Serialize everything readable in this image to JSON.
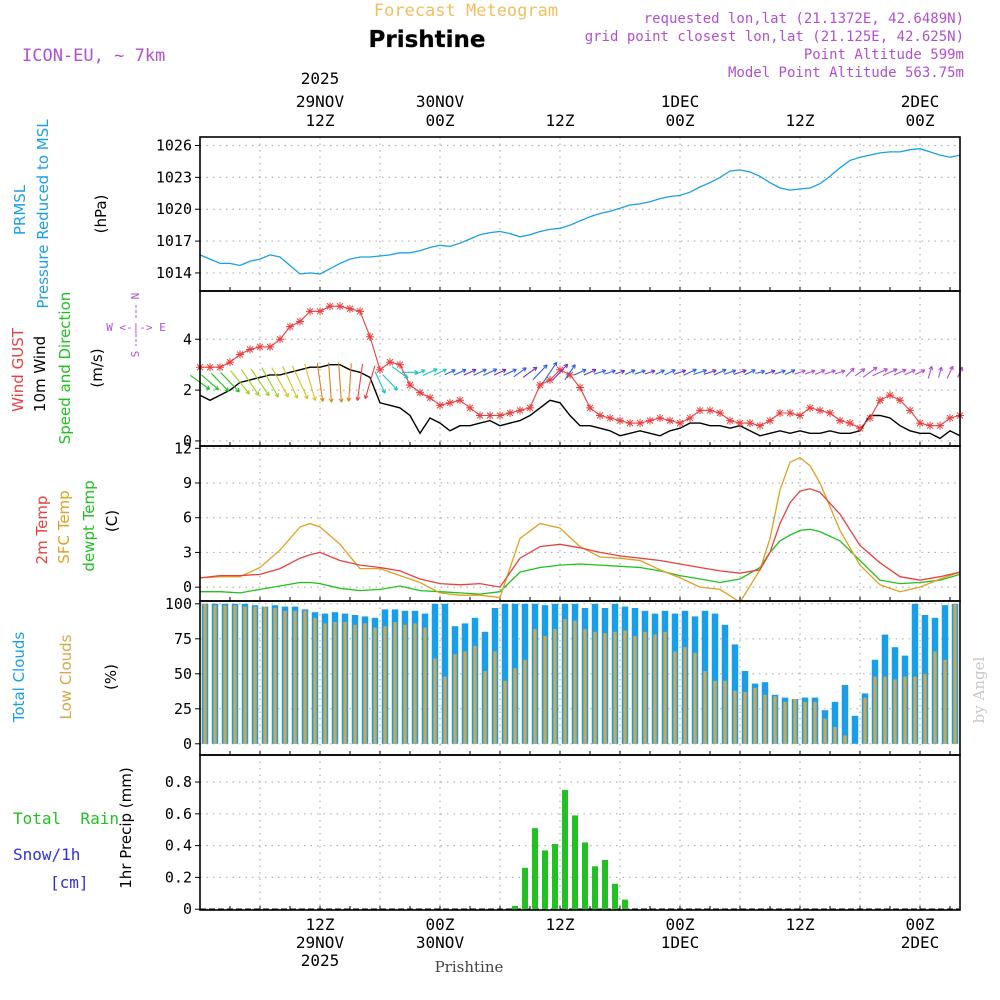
{
  "header": {
    "super_title": "Forecast Meteogram",
    "station": "Prishtine",
    "model": "ICON-EU, ~ 7km",
    "requested": "requested lon,lat (21.1372E, 42.6489N)",
    "grid_point": "grid point closest lon,lat (21.125E, 42.625N)",
    "point_altitude": "Point Altitude 599m",
    "model_altitude": "Model Point Altitude 563.75m",
    "credit": "by Angel",
    "footer_station": "Prishtine"
  },
  "colors": {
    "pressure": "#1a9ee8",
    "gust": "#e84040",
    "wind": "#000000",
    "temp2m": "#e84040",
    "sfc": "#e0a020",
    "dewpt": "#20c020",
    "total_clouds": "#1a9ee8",
    "low_clouds": "#d4a84a",
    "rain": "#22c022",
    "snow": "#3030e0",
    "header_purple": "#b050d0",
    "title_orange": "#f0c060",
    "wind_dir_purple": "#b050d0"
  },
  "time_axis": {
    "start_hour": 0,
    "end_hour": 76,
    "top_labels": [
      {
        "hour": 12,
        "line1": "2025",
        "line2": "29NOV",
        "line3": "12Z"
      },
      {
        "hour": 24,
        "line1": "",
        "line2": "30NOV",
        "line3": "00Z"
      },
      {
        "hour": 36,
        "line1": "",
        "line2": "",
        "line3": "12Z"
      },
      {
        "hour": 48,
        "line1": "",
        "line2": "1DEC",
        "line3": "00Z"
      },
      {
        "hour": 60,
        "line1": "",
        "line2": "",
        "line3": "12Z"
      },
      {
        "hour": 72,
        "line1": "",
        "line2": "2DEC",
        "line3": "00Z"
      }
    ],
    "bottom_labels": [
      {
        "hour": 12,
        "line1": "12Z",
        "line2": "29NOV",
        "line3": "2025"
      },
      {
        "hour": 24,
        "line1": "00Z",
        "line2": "30NOV",
        "line3": ""
      },
      {
        "hour": 36,
        "line1": "12Z",
        "line2": "",
        "line3": ""
      },
      {
        "hour": 48,
        "line1": "00Z",
        "line2": "1DEC",
        "line3": ""
      },
      {
        "hour": 60,
        "line1": "12Z",
        "line2": "",
        "line3": ""
      },
      {
        "hour": 72,
        "line1": "00Z",
        "line2": "2DEC",
        "line3": ""
      }
    ]
  },
  "chart_data": [
    {
      "id": "pressure",
      "type": "line",
      "title": "PRMSL Pressure Reduced to MSL",
      "label_line1": "PRMSL",
      "label_line2": "Pressure Reduced to MSL",
      "ylabel": "(hPa)",
      "ylim": [
        1012.3,
        1026.8
      ],
      "yticks": [
        1014,
        1017,
        1020,
        1023,
        1026
      ],
      "x": [
        0,
        2,
        3,
        4,
        5,
        6,
        7,
        8,
        9,
        10,
        11,
        12,
        13,
        14,
        15,
        16,
        17,
        18,
        19,
        20,
        21,
        22,
        23,
        24,
        25,
        26,
        27,
        28,
        29,
        30,
        31,
        32,
        33,
        34,
        35,
        36,
        37,
        38,
        39,
        40,
        41,
        42,
        43,
        44,
        45,
        46,
        47,
        48,
        49,
        50,
        51,
        52,
        53,
        54,
        55,
        56,
        57,
        58,
        59,
        60,
        61,
        62,
        63,
        64,
        65,
        66,
        67,
        68,
        69,
        70,
        71,
        72,
        73,
        74,
        75,
        76
      ],
      "y": [
        1015.7,
        1014.9,
        1014.9,
        1014.7,
        1015.1,
        1015.3,
        1015.7,
        1015.5,
        1014.7,
        1013.9,
        1014.0,
        1013.9,
        1014.4,
        1014.9,
        1015.3,
        1015.5,
        1015.5,
        1015.6,
        1015.7,
        1015.9,
        1015.9,
        1016.1,
        1016.4,
        1016.6,
        1016.5,
        1016.8,
        1017.2,
        1017.6,
        1017.8,
        1017.9,
        1017.7,
        1017.4,
        1017.6,
        1017.9,
        1018.1,
        1018.2,
        1018.5,
        1018.9,
        1019.3,
        1019.6,
        1019.8,
        1020.1,
        1020.4,
        1020.5,
        1020.7,
        1021.0,
        1021.2,
        1021.3,
        1021.6,
        1022.1,
        1022.5,
        1023.0,
        1023.6,
        1023.7,
        1023.5,
        1023.1,
        1022.5,
        1022.0,
        1021.8,
        1021.9,
        1022.0,
        1022.4,
        1023.1,
        1023.9,
        1024.6,
        1024.9,
        1025.1,
        1025.3,
        1025.4,
        1025.4,
        1025.6,
        1025.7,
        1025.4,
        1025.1,
        1024.9,
        1025.1
      ],
      "series_name": "PRMSL"
    },
    {
      "id": "wind",
      "type": "line",
      "title": "Wind GUST / 10m Wind Speed and Direction",
      "label_gust": "Wind GUST",
      "label_wind": "10m Wind",
      "label_dir": "Speed and Direction",
      "ylabel": "(m/s)",
      "compass_n": "N",
      "compass_s": "S",
      "compass_we": "W <-|-> E",
      "ylim": [
        -0.2,
        5.9
      ],
      "yticks": [
        0,
        2,
        4
      ],
      "x": [
        0,
        1,
        2,
        3,
        4,
        5,
        6,
        7,
        8,
        9,
        10,
        11,
        12,
        13,
        14,
        15,
        16,
        17,
        18,
        19,
        20,
        21,
        22,
        23,
        24,
        25,
        26,
        27,
        28,
        29,
        30,
        31,
        32,
        33,
        34,
        35,
        36,
        37,
        38,
        39,
        40,
        41,
        42,
        43,
        44,
        45,
        46,
        47,
        48,
        49,
        50,
        51,
        52,
        53,
        54,
        55,
        56,
        57,
        58,
        59,
        60,
        61,
        62,
        63,
        64,
        65,
        66,
        67,
        68,
        69,
        70,
        71,
        72,
        73,
        74,
        75,
        76
      ],
      "gust": [
        2.9,
        2.9,
        2.9,
        3.1,
        3.4,
        3.6,
        3.7,
        3.7,
        4.0,
        4.5,
        4.7,
        5.1,
        5.1,
        5.3,
        5.3,
        5.2,
        5.1,
        4.1,
        2.8,
        3.1,
        3.0,
        2.2,
        1.9,
        1.7,
        1.4,
        1.5,
        1.6,
        1.3,
        1.0,
        1.0,
        1.0,
        1.1,
        1.2,
        1.3,
        2.2,
        2.4,
        2.8,
        2.6,
        2.1,
        1.3,
        1.0,
        0.9,
        0.8,
        0.7,
        0.7,
        0.8,
        0.9,
        0.8,
        0.7,
        0.9,
        1.2,
        1.2,
        1.1,
        0.8,
        0.7,
        0.7,
        0.6,
        0.8,
        1.1,
        1.1,
        1.0,
        1.3,
        1.2,
        1.1,
        0.8,
        0.7,
        0.5,
        0.9,
        1.6,
        1.8,
        1.6,
        1.2,
        0.7,
        0.6,
        0.6,
        0.9,
        1.0
      ],
      "wind": [
        1.8,
        1.6,
        1.8,
        2.0,
        2.3,
        2.4,
        2.5,
        2.6,
        2.6,
        2.7,
        2.8,
        2.9,
        2.9,
        3.0,
        3.0,
        2.8,
        2.7,
        2.5,
        1.5,
        1.4,
        1.3,
        1.0,
        0.3,
        0.9,
        0.7,
        0.4,
        0.6,
        0.6,
        0.7,
        0.8,
        0.6,
        0.7,
        0.8,
        1.0,
        1.3,
        1.6,
        1.5,
        1.0,
        0.6,
        0.6,
        0.5,
        0.4,
        0.2,
        0.3,
        0.4,
        0.3,
        0.2,
        0.4,
        0.5,
        0.7,
        0.7,
        0.6,
        0.6,
        0.5,
        0.6,
        0.4,
        0.2,
        0.3,
        0.4,
        0.3,
        0.4,
        0.3,
        0.3,
        0.4,
        0.3,
        0.3,
        0.4,
        1.0,
        1.0,
        0.9,
        0.6,
        0.4,
        0.3,
        0.3,
        0.1,
        0.4,
        0.2
      ],
      "wind_dir_deg": [
        300,
        305,
        310,
        310,
        315,
        320,
        320,
        325,
        325,
        330,
        330,
        340,
        350,
        355,
        355,
        5,
        10,
        20,
        330,
        310,
        300,
        270,
        250,
        250,
        250,
        250,
        250,
        250,
        250,
        250,
        250,
        250,
        240,
        240,
        230,
        220,
        230,
        220,
        250,
        250,
        255,
        255,
        255,
        250,
        255,
        255,
        250,
        250,
        255,
        250,
        255,
        255,
        250,
        255,
        255,
        250,
        260,
        255,
        255,
        250,
        255,
        255,
        250,
        255,
        255,
        230,
        240,
        240,
        250,
        250,
        250,
        250,
        250,
        200,
        200,
        210,
        210
      ]
    },
    {
      "id": "temperature",
      "type": "line",
      "title": "2m Temp / SFC Temp / dewpt Temp",
      "label_2m": "2m Temp",
      "label_sfc": "SFC Temp",
      "label_dew": "dewpt Temp",
      "ylabel": "(C)",
      "ylim": [
        -1.2,
        12.2
      ],
      "yticks": [
        0,
        3,
        6,
        9,
        12
      ],
      "x": [
        0,
        2,
        4,
        6,
        8,
        10,
        11,
        12,
        14,
        16,
        18,
        20,
        22,
        24,
        26,
        28,
        30,
        32,
        34,
        36,
        38,
        40,
        42,
        44,
        46,
        48,
        50,
        52,
        54,
        56,
        57,
        58,
        59,
        60,
        61,
        62,
        64,
        66,
        68,
        70,
        72,
        74,
        76
      ],
      "temp2m": [
        0.8,
        1.0,
        1.0,
        1.1,
        1.6,
        2.5,
        2.8,
        3.0,
        2.3,
        1.9,
        1.7,
        1.4,
        0.7,
        0.3,
        0.2,
        0.3,
        0.0,
        2.5,
        3.5,
        3.7,
        3.4,
        3.0,
        2.7,
        2.5,
        2.3,
        2.0,
        1.7,
        1.4,
        1.2,
        1.5,
        3.0,
        5.5,
        7.3,
        8.3,
        8.5,
        8.2,
        6.3,
        3.6,
        2.1,
        0.9,
        0.6,
        0.9,
        1.3
      ],
      "sfc": [
        0.8,
        0.9,
        0.9,
        1.7,
        3.2,
        5.2,
        5.5,
        5.2,
        3.7,
        1.6,
        1.6,
        1.0,
        0.4,
        -0.5,
        -0.7,
        -0.7,
        -0.9,
        4.2,
        5.5,
        5.1,
        3.5,
        2.6,
        2.5,
        2.3,
        1.5,
        0.8,
        0.0,
        -0.2,
        -1.3,
        1.5,
        4.2,
        8.4,
        10.8,
        11.2,
        10.5,
        9.0,
        4.9,
        1.9,
        0.2,
        -0.4,
        0.0,
        0.7,
        1.3
      ],
      "dewpt": [
        -0.4,
        -0.4,
        -0.5,
        -0.2,
        0.1,
        0.4,
        0.4,
        0.3,
        -0.1,
        -0.3,
        -0.2,
        0.1,
        -0.3,
        -0.4,
        -0.5,
        -0.6,
        -0.4,
        1.3,
        1.7,
        1.9,
        2.0,
        1.9,
        1.8,
        1.7,
        1.4,
        1.0,
        0.7,
        0.4,
        0.7,
        1.7,
        3.0,
        4.0,
        4.5,
        4.9,
        5.0,
        4.8,
        4.0,
        2.3,
        0.6,
        0.3,
        0.4,
        0.6,
        1.1
      ]
    },
    {
      "id": "clouds",
      "type": "bar",
      "title": "Total Clouds / Low Clouds",
      "label_total": "Total Clouds",
      "label_low": "Low Clouds",
      "ylabel": "(%)",
      "ylim": [
        -8,
        102
      ],
      "yticks": [
        0,
        25,
        50,
        75,
        100
      ],
      "x": [
        0,
        1,
        2,
        3,
        4,
        5,
        6,
        7,
        8,
        9,
        10,
        11,
        12,
        13,
        14,
        15,
        16,
        17,
        18,
        19,
        20,
        21,
        22,
        23,
        24,
        25,
        26,
        27,
        28,
        29,
        30,
        31,
        32,
        33,
        34,
        35,
        36,
        37,
        38,
        39,
        40,
        41,
        42,
        43,
        44,
        45,
        46,
        47,
        48,
        49,
        50,
        51,
        52,
        53,
        54,
        55,
        56,
        57,
        58,
        59,
        60,
        61,
        62,
        63,
        64,
        65,
        66,
        67,
        68,
        69,
        70,
        71,
        72,
        73,
        74,
        75
      ],
      "total": [
        100,
        100,
        100,
        100,
        100,
        99,
        98,
        99,
        98,
        98,
        96,
        94,
        93,
        94,
        93,
        92,
        91,
        90,
        96,
        96,
        95,
        95,
        93,
        100,
        100,
        84,
        86,
        90,
        80,
        97,
        100,
        100,
        100,
        100,
        99,
        100,
        100,
        100,
        97,
        100,
        97,
        100,
        98,
        97,
        95,
        93,
        95,
        93,
        95,
        91,
        95,
        93,
        85,
        71,
        52,
        43,
        44,
        35,
        33,
        32,
        33,
        33,
        24,
        30,
        42,
        20,
        36,
        60,
        78,
        69,
        63,
        100,
        92,
        90,
        99,
        100
      ],
      "low": [
        100,
        99,
        99,
        99,
        98,
        98,
        98,
        97,
        95,
        95,
        95,
        90,
        86,
        87,
        87,
        85,
        86,
        83,
        84,
        87,
        85,
        86,
        83,
        61,
        48,
        64,
        66,
        70,
        52,
        66,
        45,
        54,
        60,
        82,
        77,
        82,
        89,
        88,
        82,
        80,
        79,
        80,
        81,
        77,
        80,
        78,
        80,
        66,
        69,
        65,
        52,
        45,
        45,
        38,
        37,
        40,
        35,
        34,
        30,
        32,
        30,
        30,
        18,
        12,
        6,
        0,
        33,
        48,
        48,
        46,
        48,
        48,
        50,
        66,
        60,
        100
      ]
    },
    {
      "id": "precip",
      "type": "bar",
      "title": "Total Rain / Snow/1h",
      "label_rain": "Total  Rain",
      "label_snow": "Snow/1h",
      "label_snow_unit": "[cm]",
      "ylabel": "1hr Precip (mm)",
      "ylim": [
        -0.005,
        0.97
      ],
      "yticks": [
        0,
        0.2,
        0.4,
        0.6,
        0.8
      ],
      "ytick_labels": [
        "0",
        "0.2",
        "0.4",
        "0.6",
        "0.8"
      ],
      "x": [
        31,
        32,
        33,
        34,
        35,
        36,
        37,
        38,
        39,
        40,
        41,
        42
      ],
      "rain": [
        0.02,
        0.26,
        0.51,
        0.37,
        0.41,
        0.75,
        0.59,
        0.42,
        0.27,
        0.31,
        0.16,
        0.06
      ],
      "snow": []
    }
  ]
}
